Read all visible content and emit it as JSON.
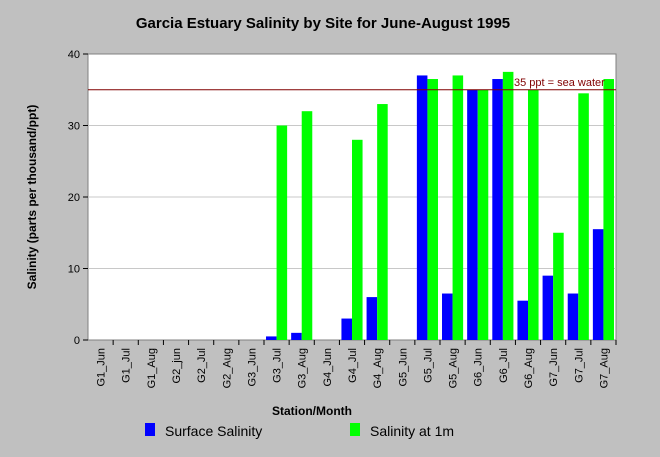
{
  "chart_data": {
    "type": "bar",
    "title": "Garcia Estuary Salinity by Site for June-August 1995",
    "xlabel": "Station/Month",
    "ylabel": "Salinity (parts per thousand/ppt)",
    "ylim": [
      0,
      40
    ],
    "yticks": [
      0,
      10,
      20,
      30,
      40
    ],
    "grid": true,
    "categories": [
      "G1_Jun",
      "G1_Jul",
      "G1_Aug",
      "G2_jun",
      "G2_Jul",
      "G2_Aug",
      "G3_Jun",
      "G3_Jul",
      "G3_Aug",
      "G4_Jun",
      "G4_Jul",
      "G4_Aug",
      "G5_Jun",
      "G5_Jul",
      "G5_Aug",
      "G6_Jun",
      "G6_Jul",
      "G6_Aug",
      "G7_Jun",
      "G7_Jul",
      "G7_Aug"
    ],
    "series": [
      {
        "name": "Surface Salinity",
        "color": "#0000ff",
        "values": [
          0,
          0,
          0,
          0,
          0,
          0,
          0,
          0.5,
          1,
          0,
          3,
          6,
          0,
          37,
          6.5,
          35,
          36.5,
          5.5,
          9,
          6.5,
          15.5
        ]
      },
      {
        "name": "Salinity at 1m",
        "color": "#00ff00",
        "values": [
          0,
          0,
          0,
          0,
          0,
          0,
          0,
          30,
          32,
          0,
          28,
          33,
          0,
          36.5,
          37,
          35,
          37.5,
          35,
          15,
          34.5,
          36.5
        ]
      }
    ],
    "reference_line": {
      "value": 35,
      "label": "35 ppt = sea water",
      "color": "#800000"
    },
    "legend_position": "bottom"
  }
}
